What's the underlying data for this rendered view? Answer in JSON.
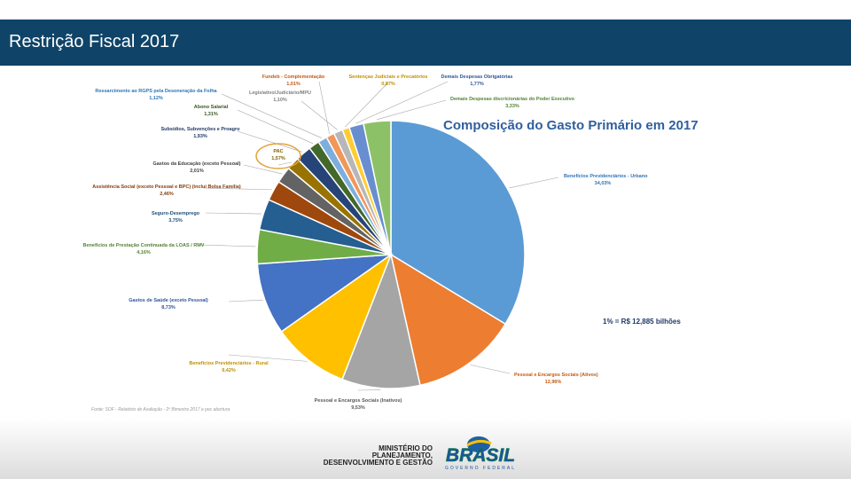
{
  "header": {
    "title": "Restrição Fiscal 2017"
  },
  "chart_data": {
    "type": "pie",
    "title": "Composição do Gasto Primário em 2017",
    "annotation": "1% = R$ 12,885 bilhões",
    "source": "Fonte: SOF - Relatório de Avaliação - 2º Bimestre 2017 e pec abertura",
    "slices": [
      {
        "label": "Benefícios Previdenciários - Urbano",
        "value": 34.03,
        "value_label": "34,03%",
        "color": "#5b9bd5"
      },
      {
        "label": "Pessoal e Encargos Sociais (Ativos)",
        "value": 12.96,
        "value_label": "12,96%",
        "color": "#ed7d31"
      },
      {
        "label": "Pessoal e Encargos Sociais (Inativos)",
        "value": 9.53,
        "value_label": "9,53%",
        "color": "#a5a5a5"
      },
      {
        "label": "Benefícios Previdenciários - Rural",
        "value": 9.42,
        "value_label": "9,42%",
        "color": "#ffc000"
      },
      {
        "label": "Gastos de Saúde (exceto Pessoal)",
        "value": 8.73,
        "value_label": "8,73%",
        "color": "#4472c4"
      },
      {
        "label": "Benefícios de Prestação Continuada da LOAS / RMV",
        "value": 4.16,
        "value_label": "4,16%",
        "color": "#70ad47"
      },
      {
        "label": "Seguro-Desemprego",
        "value": 3.75,
        "value_label": "3,75%",
        "color": "#255e91"
      },
      {
        "label": "Assistência Social (exceto Pessoal e BPC) (inclui Bolsa Família)",
        "value": 2.46,
        "value_label": "2,46%",
        "color": "#9e480e"
      },
      {
        "label": "Gastos da Educação (exceto Pessoal)",
        "value": 2.01,
        "value_label": "2,01%",
        "color": "#636363"
      },
      {
        "label": "PAC",
        "value": 1.57,
        "value_label": "1,57%",
        "color": "#997300"
      },
      {
        "label": "Subsídios, Subvenções e Proagro",
        "value": 1.93,
        "value_label": "1,93%",
        "color": "#264478"
      },
      {
        "label": "Abono Salarial",
        "value": 1.31,
        "value_label": "1,31%",
        "color": "#43682b"
      },
      {
        "label": "Ressarcimento ao RGPS pela Desoneração da Folha",
        "value": 1.12,
        "value_label": "1,12%",
        "color": "#7cafdd"
      },
      {
        "label": "Fundeb - Complementação",
        "value": 1.01,
        "value_label": "1,01%",
        "color": "#f1975a"
      },
      {
        "label": "Legislativo/Judiciário/MPU",
        "value": 1.1,
        "value_label": "1,10%",
        "color": "#b7b7b7"
      },
      {
        "label": "Sentenças Judiciais e Precatórios",
        "value": 0.87,
        "value_label": "0,87%",
        "color": "#ffcd33"
      },
      {
        "label": "Demais Despesas Obrigatórias",
        "value": 1.77,
        "value_label": "1,77%",
        "color": "#698ed0"
      },
      {
        "label": "Demais Despesas discricionárias do Poder Executivo",
        "value": 3.33,
        "value_label": "3,33%",
        "color": "#8cc168"
      }
    ]
  },
  "footer": {
    "ministry_lines": [
      "MINISTÉRIO DO",
      "PLANEJAMENTO,",
      "DESENVOLVIMENTO E GESTÃO"
    ],
    "brand": "BRASIL",
    "brand_subtitle": "GOVERNO FEDERAL"
  }
}
